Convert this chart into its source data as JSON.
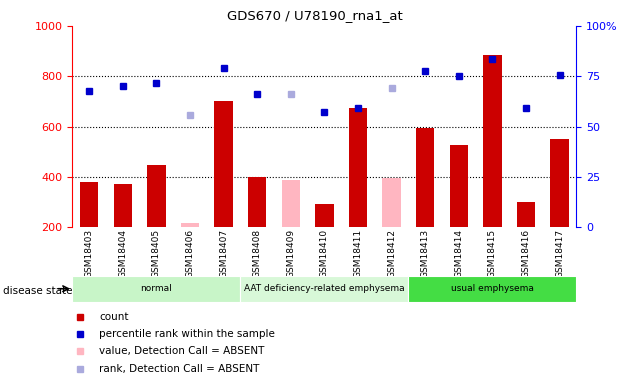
{
  "title": "GDS670 / U78190_rna1_at",
  "samples": [
    "GSM18403",
    "GSM18404",
    "GSM18405",
    "GSM18406",
    "GSM18407",
    "GSM18408",
    "GSM18409",
    "GSM18410",
    "GSM18411",
    "GSM18412",
    "GSM18413",
    "GSM18414",
    "GSM18415",
    "GSM18416",
    "GSM18417"
  ],
  "count_values": [
    380,
    370,
    445,
    215,
    700,
    400,
    385,
    290,
    675,
    395,
    595,
    525,
    885,
    300,
    550
  ],
  "count_absent": [
    false,
    false,
    false,
    true,
    false,
    false,
    true,
    false,
    false,
    true,
    false,
    false,
    false,
    false,
    false
  ],
  "rank_values": [
    740,
    760,
    775,
    645,
    835,
    730,
    730,
    660,
    675,
    755,
    820,
    800,
    870,
    675,
    805
  ],
  "rank_absent": [
    false,
    false,
    false,
    true,
    false,
    false,
    true,
    false,
    false,
    true,
    false,
    false,
    false,
    false,
    false
  ],
  "ylim_left": [
    200,
    1000
  ],
  "yticks_left": [
    200,
    400,
    600,
    800,
    1000
  ],
  "yticks_right_vals": [
    0,
    25,
    50,
    75,
    100
  ],
  "yticks_right_labels": [
    "0",
    "25",
    "50",
    "75",
    "100%"
  ],
  "groups": [
    {
      "label": "normal",
      "start": 0,
      "end": 5,
      "color": "#c8f5c8"
    },
    {
      "label": "AAT deficiency-related emphysema",
      "start": 5,
      "end": 10,
      "color": "#d8f8d8"
    },
    {
      "label": "usual emphysema",
      "start": 10,
      "end": 15,
      "color": "#44dd44"
    }
  ],
  "bar_color_present": "#CC0000",
  "bar_color_absent": "#FFB6C1",
  "dot_color_present": "#0000CC",
  "dot_color_absent": "#AAAADD",
  "bg_color": "#FFFFFF",
  "plot_bg_color": "#FFFFFF",
  "tick_area_color": "#CCCCCC",
  "disease_label": "disease state",
  "legend_items": [
    {
      "label": "count",
      "color": "#CC0000"
    },
    {
      "label": "percentile rank within the sample",
      "color": "#0000CC"
    },
    {
      "label": "value, Detection Call = ABSENT",
      "color": "#FFB6C1"
    },
    {
      "label": "rank, Detection Call = ABSENT",
      "color": "#AAAADD"
    }
  ]
}
